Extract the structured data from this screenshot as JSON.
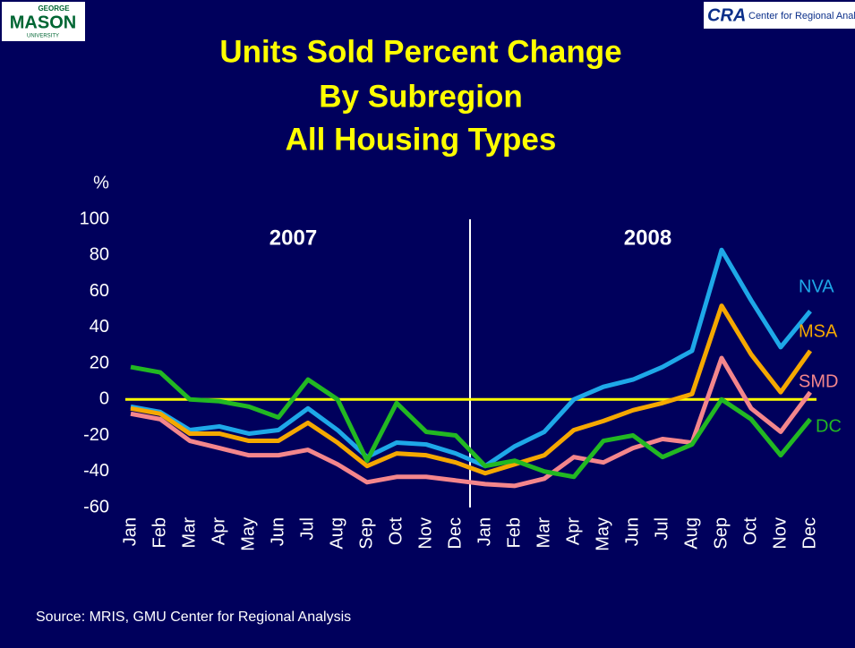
{
  "logos": {
    "left": [
      "GEORGE",
      "MASON",
      "UNIVERSITY"
    ],
    "right": [
      "CRA",
      "Center for Regional Analy"
    ]
  },
  "chart_data": {
    "type": "line",
    "title_lines": [
      "Units Sold Percent Change",
      "By Subregion",
      "All Housing Types"
    ],
    "y_label": "%",
    "source": "Source: MRIS, GMU Center for Regional Analysis",
    "annotations": [
      "2007",
      "2008"
    ],
    "categories": [
      "Jan",
      "Feb",
      "Mar",
      "Apr",
      "May",
      "Jun",
      "Jul",
      "Aug",
      "Sep",
      "Oct",
      "Nov",
      "Dec",
      "Jan",
      "Feb",
      "Mar",
      "Apr",
      "May",
      "Jun",
      "Jul",
      "Aug",
      "Sep",
      "Oct",
      "Nov",
      "Dec"
    ],
    "ylim": [
      -60,
      100
    ],
    "yticks": [
      -60,
      -40,
      -20,
      0,
      20,
      40,
      60,
      80,
      100
    ],
    "zero_line_color": "#ffff00",
    "series": [
      {
        "name": "NVA",
        "color": "#1ea8e8",
        "values": [
          -4,
          -7,
          -17,
          -15,
          -19,
          -17,
          -5,
          -17,
          -32,
          -24,
          -25,
          -30,
          -37,
          -26,
          -18,
          0,
          7,
          11,
          18,
          27,
          83,
          55,
          29,
          49
        ]
      },
      {
        "name": "MSA",
        "color": "#f5a800",
        "values": [
          -5,
          -8,
          -19,
          -19,
          -23,
          -23,
          -13,
          -24,
          -37,
          -30,
          -31,
          -35,
          -41,
          -36,
          -31,
          -17,
          -12,
          -6,
          -2,
          3,
          52,
          25,
          4,
          27
        ]
      },
      {
        "name": "SMD",
        "color": "#f4868c",
        "values": [
          -8,
          -11,
          -23,
          -27,
          -31,
          -31,
          -28,
          -36,
          -46,
          -43,
          -43,
          -45,
          -47,
          -48,
          -44,
          -32,
          -35,
          -27,
          -22,
          -24,
          23,
          -5,
          -18,
          4
        ]
      },
      {
        "name": "DC",
        "color": "#22b822",
        "values": [
          18,
          15,
          0,
          -1,
          -4,
          -10,
          11,
          0,
          -34,
          -2,
          -18,
          -20,
          -37,
          -34,
          -40,
          -43,
          -23,
          -20,
          -32,
          -25,
          0,
          -11,
          -31,
          -11
        ]
      }
    ]
  }
}
